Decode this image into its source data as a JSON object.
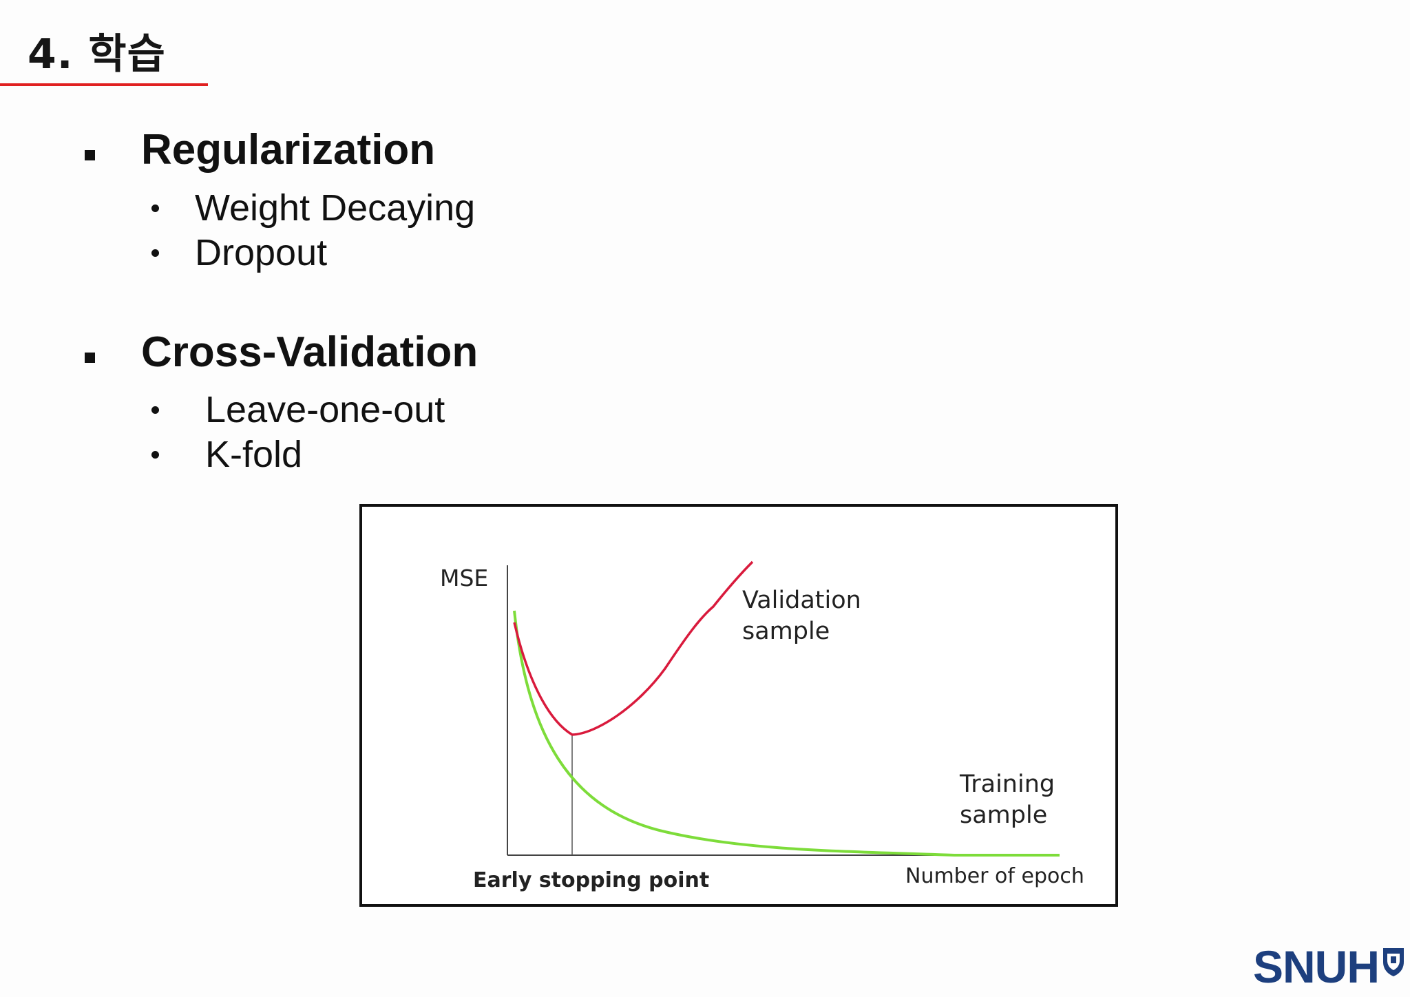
{
  "slide": {
    "title": "4. 학습"
  },
  "sections": [
    {
      "heading": "Regularization",
      "items": [
        "Weight Decaying",
        "Dropout"
      ]
    },
    {
      "heading": "Cross-Validation",
      "items": [
        "Leave-one-out",
        "K-fold"
      ]
    }
  ],
  "figure": {
    "y_label": "MSE",
    "x_label": "Number of epoch",
    "marker_label": "Early stopping point",
    "validation_label_line1": "Validation",
    "validation_label_line2": "sample",
    "training_label_line1": "Training",
    "training_label_line2": "sample",
    "validation_color": "#d91a3c",
    "training_color": "#7ddc3a"
  },
  "logo": {
    "text": "SNUH"
  },
  "colors": {
    "title_rule": "#e02020",
    "logo": "#1d3f7e"
  }
}
